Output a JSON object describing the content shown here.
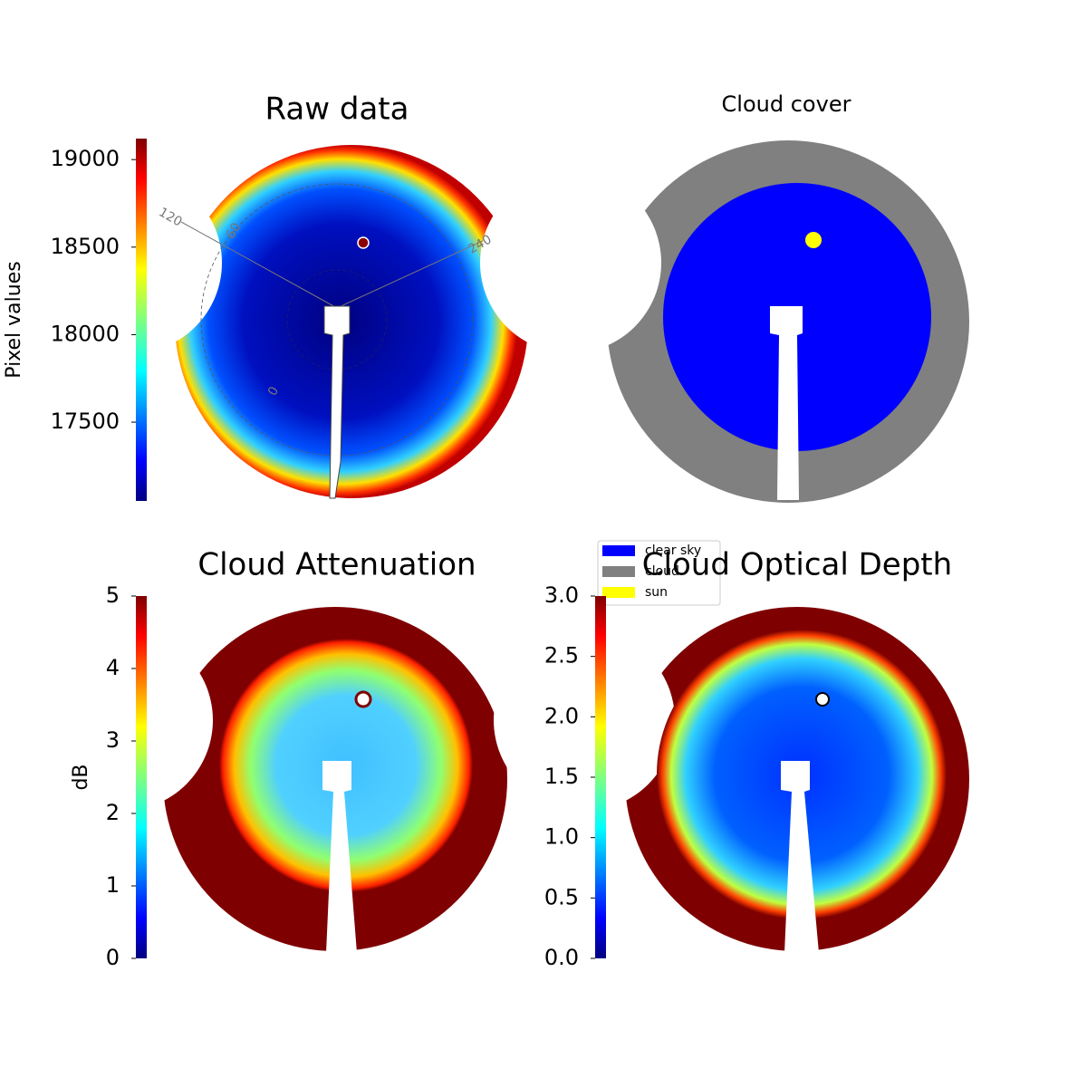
{
  "chart_data": [
    {
      "type": "image-colorbar",
      "title": "Raw data",
      "colorbar_label": "Pixel values",
      "clim": [
        17050,
        19120
      ],
      "ticks": [
        17500,
        18000,
        18500,
        19000
      ],
      "polar_labels": [
        "120",
        "60",
        "240",
        "0"
      ]
    },
    {
      "type": "image-legend",
      "title": "Cloud cover",
      "legend": [
        {
          "name": "clear sky",
          "color": "#0000ff"
        },
        {
          "name": "cloud",
          "color": "#808080"
        },
        {
          "name": "sun",
          "color": "#ffff00"
        }
      ]
    },
    {
      "type": "image-colorbar",
      "title": "Cloud Attenuation",
      "colorbar_label": "dB",
      "clim": [
        0,
        5
      ],
      "ticks": [
        0,
        1,
        2,
        3,
        4,
        5
      ]
    },
    {
      "type": "image-colorbar",
      "title": "Cloud Optical Depth",
      "clim": [
        0,
        3
      ],
      "ticks": [
        {
          "value": 0,
          "label": "0.0"
        },
        {
          "value": 0.5,
          "label": "0.5"
        },
        {
          "value": 1,
          "label": "1.0"
        },
        {
          "value": 1.5,
          "label": "1.5"
        },
        {
          "value": 2,
          "label": "2.0"
        },
        {
          "value": 2.5,
          "label": "2.5"
        },
        {
          "value": 3,
          "label": "3.0"
        }
      ]
    }
  ]
}
